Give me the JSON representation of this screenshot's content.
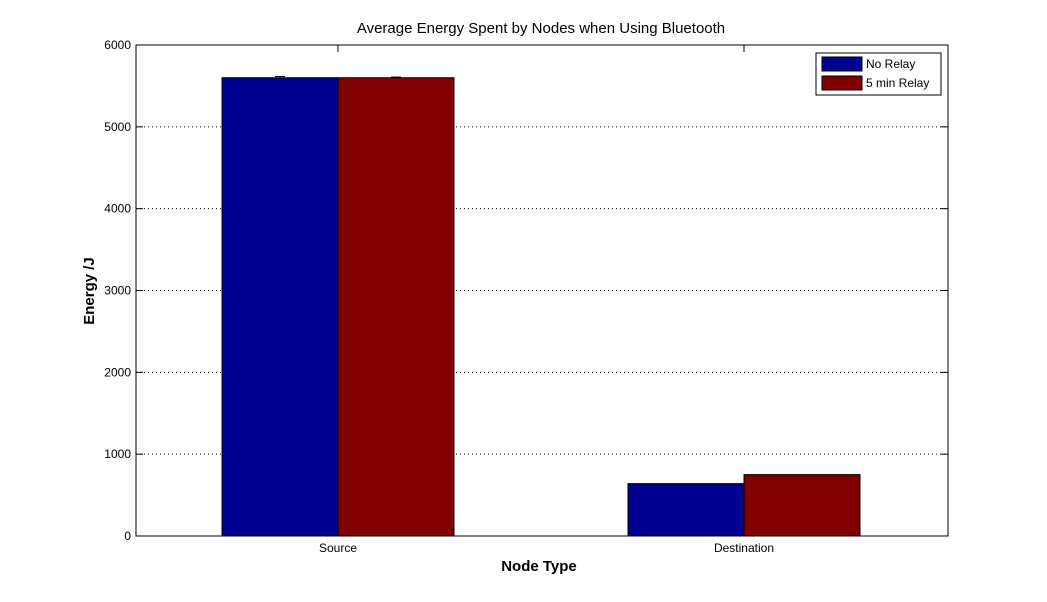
{
  "chart_data": {
    "type": "bar",
    "title": "Average Energy Spent by Nodes when Using Bluetooth",
    "xlabel": "Node Type",
    "ylabel": "Energy /J",
    "categories": [
      "Source",
      "Destination"
    ],
    "series": [
      {
        "name": "No Relay",
        "color": "#00008f",
        "values": [
          5600,
          640
        ],
        "errors": [
          15,
          0
        ]
      },
      {
        "name": "5 min Relay",
        "color": "#800000",
        "values": [
          5600,
          750
        ],
        "errors": [
          8,
          0
        ]
      }
    ],
    "ylim": [
      0,
      6000
    ],
    "yticks": [
      0,
      1000,
      2000,
      3000,
      4000,
      5000,
      6000
    ],
    "grid": "y-dotted",
    "legend": "top-right"
  }
}
